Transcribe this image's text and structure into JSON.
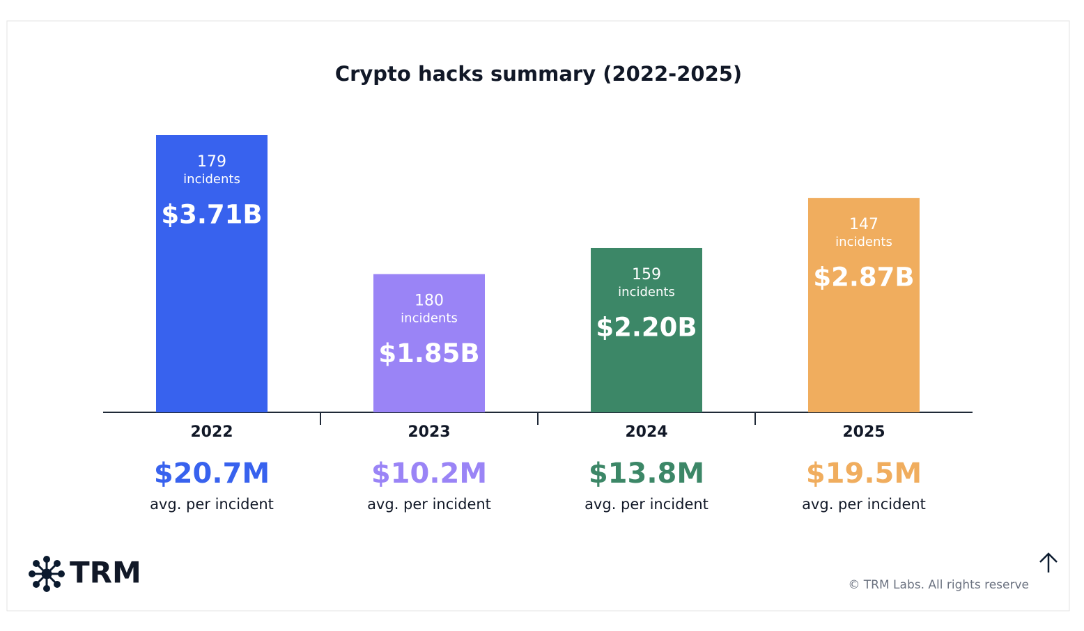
{
  "chart_data": {
    "type": "bar",
    "title": "Crypto hacks summary (2022-2025)",
    "categories": [
      "2022",
      "2023",
      "2024",
      "2025"
    ],
    "values": [
      3.71,
      1.85,
      2.2,
      2.87
    ],
    "value_labels": [
      "$3.71B",
      "$1.85B",
      "$2.20B",
      "$2.87B"
    ],
    "colors": [
      "#3862ee",
      "#9a84f6",
      "#3c8767",
      "#f0ad5e"
    ],
    "incidents": [
      179,
      180,
      159,
      147
    ],
    "incidents_label": "incidents",
    "average_labels": [
      "$20.7M",
      "$10.2M",
      "$13.8M",
      "$19.5M"
    ],
    "average_caption": "avg. per incident"
  },
  "footer": {
    "logo": "TRM",
    "copyright": "© TRM Labs. All rights reserve"
  }
}
